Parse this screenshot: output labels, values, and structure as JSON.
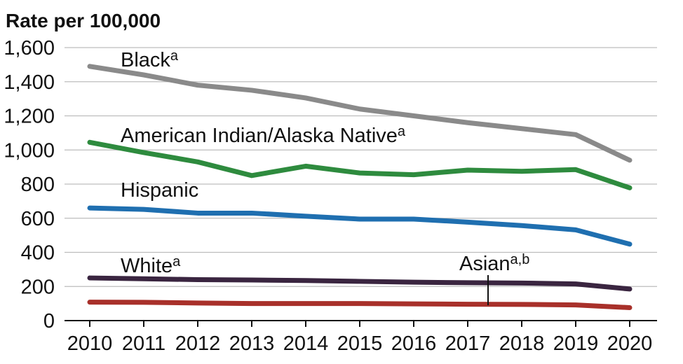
{
  "chart_data": {
    "type": "line",
    "ylabel": "Rate per 100,000",
    "xlabel": "",
    "x": [
      "2010",
      "2011",
      "2012",
      "2013",
      "2014",
      "2015",
      "2016",
      "2017",
      "2018",
      "2019",
      "2020"
    ],
    "ylim": [
      0,
      1600
    ],
    "yticks": [
      "0",
      "200",
      "400",
      "600",
      "800",
      "1,000",
      "1,200",
      "1,400",
      "1,600"
    ],
    "grid": "horizontal",
    "series": [
      {
        "name": "Black",
        "superscript": "a",
        "color": "#8a8a8a",
        "values": [
          1490,
          1440,
          1380,
          1350,
          1305,
          1240,
          1200,
          1160,
          1125,
          1090,
          940
        ]
      },
      {
        "name": "American Indian/Alaska Native",
        "superscript": "a",
        "color": "#2e8b3e",
        "values": [
          1045,
          985,
          930,
          850,
          905,
          865,
          855,
          882,
          875,
          885,
          778
        ]
      },
      {
        "name": "Hispanic",
        "superscript": "",
        "color": "#1f6fb0",
        "values": [
          660,
          652,
          630,
          630,
          612,
          595,
          595,
          577,
          557,
          532,
          448
        ]
      },
      {
        "name": "White",
        "superscript": "a",
        "color": "#3a2540",
        "values": [
          250,
          245,
          240,
          238,
          235,
          230,
          225,
          222,
          220,
          215,
          185
        ]
      },
      {
        "name": "Asian",
        "superscript": "a,b",
        "color": "#a8302a",
        "values": [
          108,
          107,
          103,
          100,
          100,
          100,
          98,
          96,
          95,
          92,
          76
        ]
      }
    ]
  }
}
